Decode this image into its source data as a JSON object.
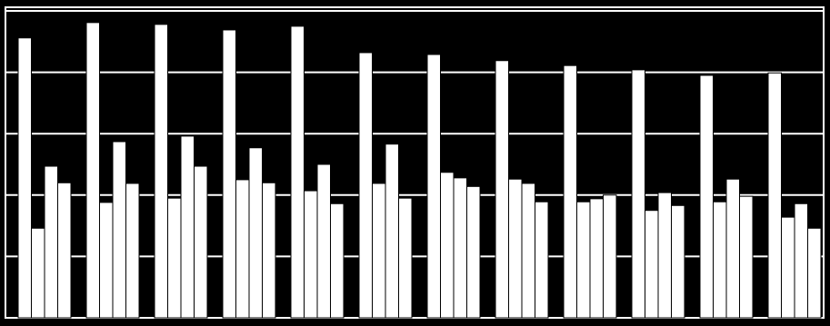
{
  "chart_data": {
    "type": "bar",
    "categories": [
      null,
      null,
      null,
      null,
      null,
      null,
      null,
      null,
      null,
      null,
      null,
      null
    ],
    "series": [
      {
        "color": "#ffffff",
        "values": [
          4.56,
          4.81,
          4.78,
          4.69,
          4.75,
          4.32,
          4.29,
          4.19,
          4.11,
          4.04,
          3.95,
          3.99
        ]
      },
      {
        "color": "#ffffff",
        "values": [
          1.46,
          1.88,
          1.95,
          2.25,
          2.07,
          2.19,
          2.37,
          2.26,
          1.89,
          1.75,
          1.89,
          1.64
        ]
      },
      {
        "color": "#ffffff",
        "values": [
          2.47,
          2.87,
          2.96,
          2.77,
          2.5,
          2.83,
          2.28,
          2.19,
          1.94,
          2.04,
          2.26,
          1.86
        ]
      },
      {
        "color": "#ffffff",
        "values": [
          2.2,
          2.19,
          2.47,
          2.2,
          1.86,
          1.95,
          2.14,
          1.89,
          2.0,
          1.83,
          1.98,
          1.46
        ]
      }
    ],
    "ylim": [
      0,
      5
    ],
    "yticks": [
      0,
      1,
      2,
      3,
      4,
      5
    ],
    "grid": true
  }
}
